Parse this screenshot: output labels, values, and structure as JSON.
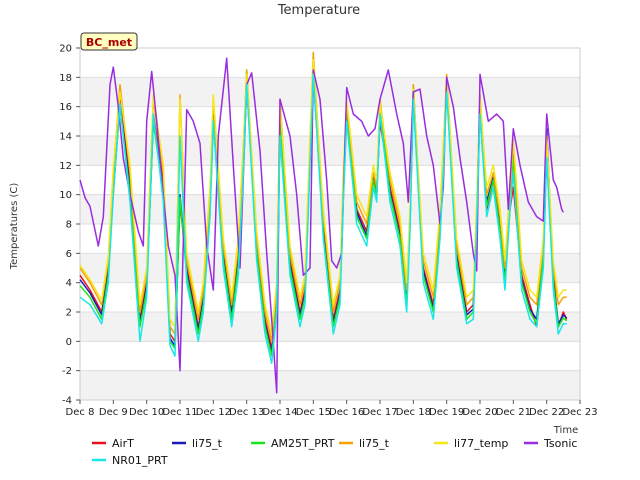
{
  "chart_data": {
    "type": "line",
    "title": "Temperature",
    "xlabel": "Time",
    "ylabel": "Temperatures (C)",
    "annotation": "BC_met",
    "ylim": [
      -4,
      20
    ],
    "yticks": [
      -4,
      -2,
      0,
      2,
      4,
      6,
      8,
      10,
      12,
      14,
      16,
      18,
      20
    ],
    "xlim": [
      8,
      23
    ],
    "xticks": [
      {
        "v": 8,
        "label": "Dec 8"
      },
      {
        "v": 9,
        "label": "Dec 9"
      },
      {
        "v": 10,
        "label": "Dec 10"
      },
      {
        "v": 11,
        "label": "Dec 11"
      },
      {
        "v": 12,
        "label": "Dec 12"
      },
      {
        "v": 13,
        "label": "Dec 13"
      },
      {
        "v": 14,
        "label": "Dec 14"
      },
      {
        "v": 15,
        "label": "Dec 15"
      },
      {
        "v": 16,
        "label": "Dec 16"
      },
      {
        "v": 17,
        "label": "Dec 17"
      },
      {
        "v": 18,
        "label": "Dec 18"
      },
      {
        "v": 19,
        "label": "Dec 19"
      },
      {
        "v": 20,
        "label": "Dec 20"
      },
      {
        "v": 21,
        "label": "Dec 21"
      },
      {
        "v": 22,
        "label": "Dec 22"
      },
      {
        "v": 23,
        "label": "Dec 23"
      }
    ],
    "grid": true,
    "legend_position": "bottom",
    "series": [
      {
        "name": "AirT",
        "color": "#e8101f",
        "x": [
          8.0,
          8.3,
          8.65,
          8.85,
          9.0,
          9.2,
          9.5,
          9.8,
          10.0,
          10.2,
          10.5,
          10.7,
          10.85,
          11.0,
          11.2,
          11.55,
          11.7,
          11.9,
          12.0,
          12.3,
          12.55,
          12.75,
          12.9,
          13.0,
          13.3,
          13.55,
          13.75,
          13.9,
          14.0,
          14.3,
          14.6,
          14.75,
          14.9,
          15.0,
          15.3,
          15.6,
          15.8,
          15.9,
          16.0,
          16.3,
          16.6,
          16.8,
          16.9,
          17.0,
          17.3,
          17.6,
          17.8,
          17.9,
          18.0,
          18.3,
          18.6,
          18.8,
          18.9,
          19.0,
          19.3,
          19.6,
          19.8,
          19.9,
          20.0,
          20.2,
          20.4,
          20.6,
          20.75,
          20.9,
          21.0,
          21.25,
          21.5,
          21.7,
          21.9,
          22.0,
          22.2,
          22.35,
          22.5,
          22.6
        ],
        "y": [
          4.5,
          3.5,
          2.0,
          5.0,
          10.0,
          16.5,
          11.0,
          1.5,
          4.0,
          15.5,
          11.0,
          0.5,
          0.0,
          9.5,
          5.0,
          1.0,
          3.0,
          9.0,
          15.0,
          6.0,
          2.0,
          6.0,
          12.0,
          17.5,
          6.5,
          1.5,
          -0.5,
          3.0,
          15.0,
          5.5,
          2.0,
          3.5,
          12.5,
          18.0,
          8.0,
          1.5,
          3.5,
          10.0,
          15.5,
          9.0,
          7.5,
          11.0,
          10.0,
          15.0,
          10.5,
          7.5,
          3.0,
          8.0,
          16.5,
          5.0,
          2.5,
          8.0,
          12.0,
          17.5,
          6.0,
          2.0,
          2.5,
          8.5,
          16.0,
          9.0,
          11.0,
          8.0,
          4.5,
          9.0,
          10.5,
          4.5,
          2.5,
          1.0,
          5.5,
          14.0,
          4.5,
          1.0,
          2.0,
          1.5
        ]
      },
      {
        "name": "li75_t",
        "color": "#1a1ab8",
        "x": [
          8.0,
          8.3,
          8.65,
          8.85,
          9.0,
          9.2,
          9.5,
          9.8,
          10.0,
          10.2,
          10.5,
          10.7,
          10.85,
          11.0,
          11.2,
          11.55,
          11.7,
          11.9,
          12.0,
          12.3,
          12.55,
          12.75,
          12.9,
          13.0,
          13.3,
          13.55,
          13.75,
          13.9,
          14.0,
          14.3,
          14.6,
          14.75,
          14.9,
          15.0,
          15.3,
          15.6,
          15.8,
          15.9,
          16.0,
          16.3,
          16.6,
          16.8,
          16.9,
          17.0,
          17.3,
          17.6,
          17.8,
          17.9,
          18.0,
          18.3,
          18.6,
          18.8,
          18.9,
          19.0,
          19.3,
          19.6,
          19.8,
          19.9,
          20.0,
          20.2,
          20.4,
          20.6,
          20.75,
          20.9,
          21.0,
          21.25,
          21.5,
          21.7,
          21.9,
          22.0,
          22.2,
          22.35,
          22.5,
          22.6
        ],
        "y": [
          4.2,
          3.3,
          1.8,
          4.8,
          11.0,
          16.0,
          10.5,
          1.2,
          3.8,
          15.0,
          10.5,
          0.2,
          -0.3,
          10.0,
          4.8,
          0.8,
          2.8,
          9.5,
          15.5,
          5.8,
          1.8,
          5.5,
          12.5,
          17.8,
          6.2,
          1.2,
          -0.8,
          2.8,
          14.5,
          5.2,
          1.8,
          3.2,
          12.8,
          18.5,
          7.5,
          1.2,
          3.2,
          10.5,
          15.8,
          8.8,
          7.2,
          11.2,
          10.2,
          15.5,
          10.2,
          7.2,
          2.8,
          8.2,
          17.0,
          4.8,
          2.2,
          7.8,
          12.5,
          17.8,
          5.8,
          1.8,
          2.2,
          8.8,
          16.5,
          9.5,
          11.2,
          7.8,
          4.2,
          9.5,
          13.0,
          4.2,
          2.2,
          1.5,
          6.0,
          14.5,
          4.2,
          1.2,
          1.8,
          1.6
        ]
      },
      {
        "name": "AM25T_PRT",
        "color": "#19e619",
        "x": [
          8.0,
          8.3,
          8.65,
          8.85,
          9.0,
          9.2,
          9.5,
          9.8,
          10.0,
          10.2,
          10.5,
          10.7,
          10.85,
          11.0,
          11.2,
          11.55,
          11.7,
          11.9,
          12.0,
          12.3,
          12.55,
          12.75,
          12.9,
          13.0,
          13.3,
          13.55,
          13.75,
          13.9,
          14.0,
          14.3,
          14.6,
          14.75,
          14.9,
          15.0,
          15.3,
          15.6,
          15.8,
          15.9,
          16.0,
          16.3,
          16.6,
          16.8,
          16.9,
          17.0,
          17.3,
          17.6,
          17.8,
          17.9,
          18.0,
          18.3,
          18.6,
          18.8,
          18.9,
          19.0,
          19.3,
          19.6,
          19.8,
          19.9,
          20.0,
          20.2,
          20.4,
          20.6,
          20.75,
          20.9,
          21.0,
          21.25,
          21.5,
          21.7,
          21.9,
          22.0,
          22.2,
          22.35,
          22.5,
          22.6
        ],
        "y": [
          3.8,
          3.0,
          1.5,
          4.5,
          10.5,
          16.0,
          10.0,
          1.0,
          3.5,
          15.0,
          10.0,
          0.0,
          -0.5,
          9.8,
          4.5,
          0.5,
          2.5,
          9.2,
          15.2,
          5.5,
          1.5,
          5.2,
          12.2,
          18.5,
          6.0,
          1.0,
          -1.0,
          2.5,
          14.8,
          5.0,
          1.5,
          3.0,
          12.5,
          18.8,
          7.2,
          1.0,
          3.0,
          10.2,
          16.0,
          8.5,
          7.0,
          11.0,
          10.0,
          16.0,
          10.0,
          7.0,
          2.5,
          8.0,
          17.5,
          4.5,
          2.0,
          7.5,
          12.2,
          18.0,
          5.5,
          1.5,
          2.0,
          8.5,
          16.0,
          9.2,
          11.0,
          7.5,
          4.0,
          9.2,
          12.5,
          4.0,
          2.0,
          1.2,
          5.8,
          14.0,
          4.0,
          1.0,
          1.6,
          1.4
        ]
      },
      {
        "name": "li75_t",
        "color": "#f5a300",
        "x": [
          8.0,
          8.3,
          8.65,
          8.85,
          9.0,
          9.2,
          9.5,
          9.8,
          10.0,
          10.2,
          10.5,
          10.7,
          10.85,
          11.0,
          11.2,
          11.55,
          11.7,
          11.9,
          12.0,
          12.3,
          12.55,
          12.75,
          12.9,
          13.0,
          13.3,
          13.55,
          13.75,
          13.9,
          14.0,
          14.3,
          14.6,
          14.75,
          14.9,
          15.0,
          15.3,
          15.6,
          15.8,
          15.9,
          16.0,
          16.3,
          16.6,
          16.8,
          16.9,
          17.0,
          17.3,
          17.6,
          17.8,
          17.9,
          18.0,
          18.3,
          18.6,
          18.8,
          18.9,
          19.0,
          19.3,
          19.6,
          19.8,
          19.9,
          20.0,
          20.2,
          20.4,
          20.6,
          20.75,
          20.9,
          21.0,
          21.25,
          21.5,
          21.7,
          21.9,
          22.0,
          22.2,
          22.35,
          22.5,
          22.6
        ],
        "y": [
          5.0,
          4.0,
          2.5,
          5.5,
          11.5,
          17.5,
          11.5,
          2.0,
          4.5,
          16.5,
          11.5,
          1.0,
          0.5,
          16.8,
          5.5,
          1.5,
          3.5,
          10.0,
          16.5,
          6.5,
          2.5,
          6.5,
          13.0,
          18.5,
          7.0,
          2.0,
          0.0,
          3.5,
          16.5,
          6.0,
          2.5,
          4.0,
          13.5,
          19.7,
          8.5,
          2.0,
          4.0,
          11.0,
          16.2,
          9.5,
          8.0,
          11.5,
          10.5,
          16.5,
          11.0,
          8.0,
          3.5,
          8.5,
          17.5,
          5.5,
          3.0,
          8.5,
          13.0,
          18.2,
          6.5,
          2.5,
          3.0,
          9.0,
          16.8,
          10.0,
          11.5,
          8.5,
          5.0,
          10.0,
          13.5,
          5.0,
          3.0,
          2.5,
          6.5,
          14.0,
          5.0,
          2.5,
          3.0,
          3.0
        ]
      },
      {
        "name": "li77_temp",
        "color": "#f5e61a",
        "x": [
          8.0,
          8.3,
          8.65,
          8.85,
          9.0,
          9.2,
          9.5,
          9.8,
          10.0,
          10.2,
          10.5,
          10.7,
          10.85,
          11.0,
          11.2,
          11.55,
          11.7,
          11.9,
          12.0,
          12.3,
          12.55,
          12.75,
          12.9,
          13.0,
          13.3,
          13.55,
          13.75,
          13.9,
          14.0,
          14.3,
          14.6,
          14.75,
          14.9,
          15.0,
          15.3,
          15.6,
          15.8,
          15.9,
          16.0,
          16.3,
          16.6,
          16.8,
          16.9,
          17.0,
          17.3,
          17.6,
          17.8,
          17.9,
          18.0,
          18.3,
          18.6,
          18.8,
          18.9,
          19.0,
          19.3,
          19.6,
          19.8,
          19.9,
          20.0,
          20.2,
          20.4,
          20.6,
          20.75,
          20.9,
          21.0,
          21.25,
          21.5,
          21.7,
          21.9,
          22.0,
          22.2,
          22.35,
          22.5,
          22.6
        ],
        "y": [
          5.2,
          4.2,
          2.8,
          5.8,
          11.8,
          17.0,
          12.0,
          2.5,
          5.0,
          16.8,
          12.0,
          1.5,
          1.0,
          16.5,
          6.0,
          2.0,
          4.0,
          10.5,
          16.8,
          7.0,
          3.0,
          7.0,
          13.5,
          18.2,
          7.5,
          2.5,
          0.5,
          4.0,
          16.2,
          6.5,
          3.0,
          4.5,
          14.0,
          19.2,
          9.0,
          2.5,
          4.5,
          11.5,
          16.5,
          10.0,
          8.5,
          12.0,
          11.0,
          16.2,
          11.5,
          8.5,
          4.0,
          9.0,
          17.2,
          6.0,
          3.5,
          9.0,
          13.5,
          17.8,
          7.0,
          3.0,
          3.5,
          9.5,
          16.5,
          10.5,
          12.0,
          9.0,
          5.5,
          10.5,
          13.8,
          5.5,
          3.5,
          3.0,
          7.0,
          13.8,
          5.5,
          3.0,
          3.5,
          3.5
        ]
      },
      {
        "name": "Tsonic",
        "color": "#9a2ce0",
        "x": [
          8.0,
          8.15,
          8.3,
          8.55,
          8.7,
          8.9,
          9.0,
          9.15,
          9.3,
          9.5,
          9.75,
          9.9,
          10.0,
          10.15,
          10.3,
          10.5,
          10.65,
          10.85,
          11.0,
          11.2,
          11.4,
          11.6,
          11.8,
          12.0,
          12.15,
          12.4,
          12.6,
          12.8,
          13.0,
          13.15,
          13.4,
          13.6,
          13.75,
          13.9,
          14.0,
          14.3,
          14.5,
          14.7,
          14.9,
          15.0,
          15.2,
          15.4,
          15.55,
          15.7,
          15.85,
          16.0,
          16.2,
          16.45,
          16.65,
          16.85,
          17.0,
          17.25,
          17.5,
          17.7,
          17.85,
          18.0,
          18.2,
          18.4,
          18.6,
          18.8,
          18.9,
          19.0,
          19.2,
          19.4,
          19.6,
          19.8,
          19.9,
          20.0,
          20.25,
          20.5,
          20.7,
          20.85,
          21.0,
          21.2,
          21.45,
          21.7,
          21.9,
          22.0,
          22.2,
          22.3,
          22.45,
          22.5
        ],
        "y": [
          11.0,
          9.8,
          9.2,
          6.5,
          8.5,
          17.5,
          18.7,
          16.0,
          12.5,
          10.0,
          7.5,
          6.5,
          15.0,
          18.4,
          15.0,
          10.0,
          6.5,
          4.5,
          -2.0,
          15.8,
          15.0,
          13.5,
          6.5,
          3.5,
          14.0,
          19.3,
          12.0,
          5.0,
          17.5,
          18.3,
          13.0,
          6.0,
          1.5,
          -3.5,
          16.5,
          14.0,
          10.0,
          4.5,
          5.0,
          18.5,
          16.5,
          11.0,
          5.5,
          5.0,
          6.0,
          17.3,
          15.5,
          15.0,
          14.0,
          14.5,
          16.5,
          18.5,
          15.5,
          13.5,
          9.5,
          17.0,
          17.2,
          14.0,
          12.0,
          8.0,
          10.5,
          18.0,
          16.0,
          12.5,
          9.5,
          6.0,
          4.8,
          18.2,
          15.0,
          15.5,
          15.0,
          9.0,
          14.5,
          12.0,
          9.5,
          8.5,
          8.2,
          15.5,
          11.0,
          10.5,
          9.0,
          8.8
        ]
      },
      {
        "name": "NR01_PRT",
        "color": "#19e6e6",
        "x": [
          8.0,
          8.3,
          8.65,
          8.85,
          9.0,
          9.2,
          9.5,
          9.8,
          10.0,
          10.2,
          10.5,
          10.7,
          10.85,
          11.0,
          11.2,
          11.55,
          11.7,
          11.9,
          12.0,
          12.3,
          12.55,
          12.75,
          12.9,
          13.0,
          13.3,
          13.55,
          13.75,
          13.9,
          14.0,
          14.3,
          14.6,
          14.75,
          14.9,
          15.0,
          15.3,
          15.6,
          15.8,
          15.9,
          16.0,
          16.3,
          16.6,
          16.8,
          16.9,
          17.0,
          17.3,
          17.6,
          17.8,
          17.9,
          18.0,
          18.3,
          18.6,
          18.8,
          18.9,
          19.0,
          19.3,
          19.6,
          19.8,
          19.9,
          20.0,
          20.2,
          20.4,
          20.6,
          20.75,
          20.9,
          21.0,
          21.25,
          21.5,
          21.7,
          21.9,
          22.0,
          22.2,
          22.35,
          22.5,
          22.6
        ],
        "y": [
          3.0,
          2.5,
          1.2,
          4.0,
          10.0,
          16.2,
          9.5,
          0.0,
          3.0,
          15.5,
          9.5,
          -0.3,
          -1.0,
          14.0,
          4.0,
          0.0,
          2.0,
          8.5,
          15.0,
          5.0,
          1.0,
          4.5,
          11.5,
          17.5,
          5.5,
          0.5,
          -1.5,
          2.0,
          14.0,
          4.5,
          1.0,
          2.5,
          12.0,
          18.2,
          7.0,
          0.5,
          2.5,
          9.5,
          15.0,
          8.0,
          6.5,
          10.5,
          9.5,
          15.5,
          9.5,
          6.5,
          2.0,
          7.5,
          16.5,
          4.0,
          1.5,
          7.0,
          11.5,
          17.0,
          5.0,
          1.2,
          1.5,
          8.0,
          15.5,
          8.5,
          10.5,
          7.0,
          3.5,
          9.0,
          11.5,
          3.5,
          1.5,
          1.0,
          5.0,
          12.5,
          3.5,
          0.5,
          1.2,
          1.2
        ]
      }
    ]
  },
  "legend_order": [
    0,
    1,
    2,
    3,
    4,
    5,
    6
  ]
}
